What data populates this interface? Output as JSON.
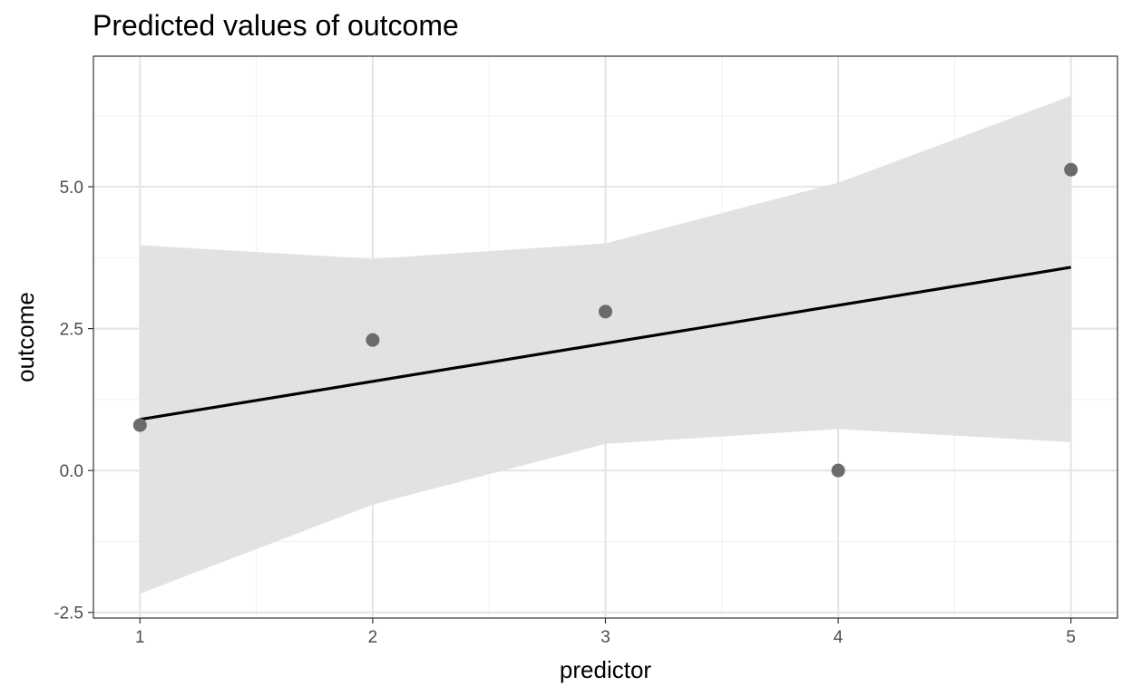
{
  "chart_data": {
    "type": "scatter",
    "title": "Predicted values of outcome",
    "xlabel": "predictor",
    "ylabel": "outcome",
    "xlim": [
      0.8,
      5.2
    ],
    "ylim": [
      -2.6,
      7.3
    ],
    "x_ticks": [
      1,
      2,
      3,
      4,
      5
    ],
    "x_tick_labels": [
      "1",
      "2",
      "3",
      "4",
      "5"
    ],
    "x_minor": [
      1.5,
      2.5,
      3.5,
      4.5
    ],
    "y_ticks": [
      -2.5,
      0,
      2.5,
      5
    ],
    "y_tick_labels": [
      "-2.5",
      "0.0",
      "2.5",
      "5.0"
    ],
    "y_minor": [
      -1.25,
      1.25,
      3.75,
      6.25
    ],
    "grid": true,
    "points": [
      {
        "x": 1,
        "y": 0.8
      },
      {
        "x": 2,
        "y": 2.3
      },
      {
        "x": 3,
        "y": 2.8
      },
      {
        "x": 4,
        "y": 0.0
      },
      {
        "x": 5,
        "y": 5.3
      }
    ],
    "fit_line": [
      {
        "x": 1,
        "y": 0.9
      },
      {
        "x": 5,
        "y": 3.58
      }
    ],
    "confidence_band": {
      "x": [
        1,
        2,
        3,
        4,
        5
      ],
      "upper": [
        3.97,
        3.73,
        4.0,
        5.07,
        6.6
      ],
      "lower": [
        -2.17,
        -0.6,
        0.47,
        0.73,
        0.5
      ]
    },
    "colors": {
      "point": "#6b6b6b",
      "line": "#000000",
      "band": "#e0e0e0",
      "grid_major": "#e6e6e6",
      "grid_minor": "#f2f2f2",
      "panel_border": "#333333"
    }
  }
}
